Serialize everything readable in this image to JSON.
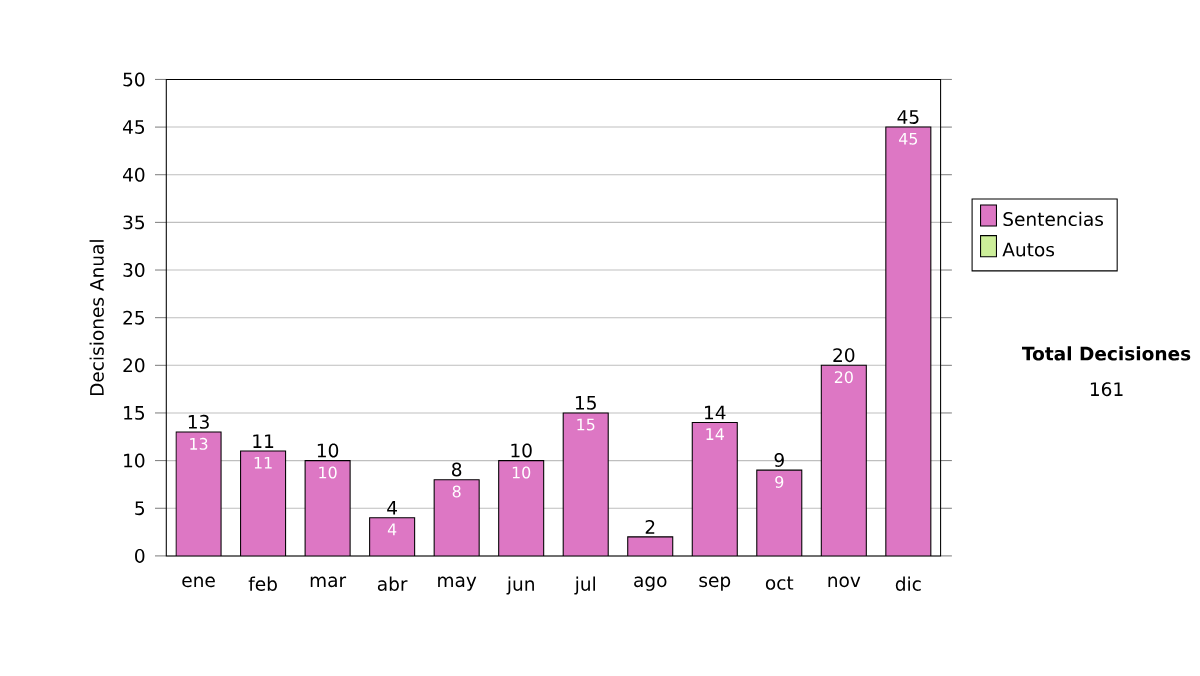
{
  "chart_data": {
    "type": "bar",
    "stacked": true,
    "ylabel": "Decisiones Anual",
    "categories": [
      "ene",
      "feb",
      "mar",
      "abr",
      "may",
      "jun",
      "jul",
      "ago",
      "sep",
      "oct",
      "nov",
      "dic"
    ],
    "series": [
      {
        "name": "Sentencias",
        "color": "#dd77c4",
        "values": [
          13,
          11,
          10,
          4,
          8,
          10,
          15,
          2,
          14,
          9,
          20,
          45
        ],
        "value_labels": [
          "13",
          "11",
          "10",
          "4",
          "8",
          "10",
          "15",
          null,
          "14",
          "9",
          "20",
          "45"
        ]
      },
      {
        "name": "Autos",
        "color": "#ccee99",
        "values": [
          0,
          0,
          0,
          0,
          0,
          0,
          0,
          0,
          0,
          0,
          0,
          0
        ]
      }
    ],
    "totals": [
      "13",
      "11",
      "10",
      "4",
      "8",
      "10",
      "15",
      "2",
      "14",
      "9",
      "20",
      "45"
    ],
    "ylim": [
      0,
      50
    ],
    "yticks": [
      0,
      5,
      10,
      15,
      20,
      25,
      30,
      35,
      40,
      45,
      50
    ],
    "grid": "y",
    "legend": "right",
    "annotations": [
      "Total Decisiones",
      "161"
    ]
  }
}
